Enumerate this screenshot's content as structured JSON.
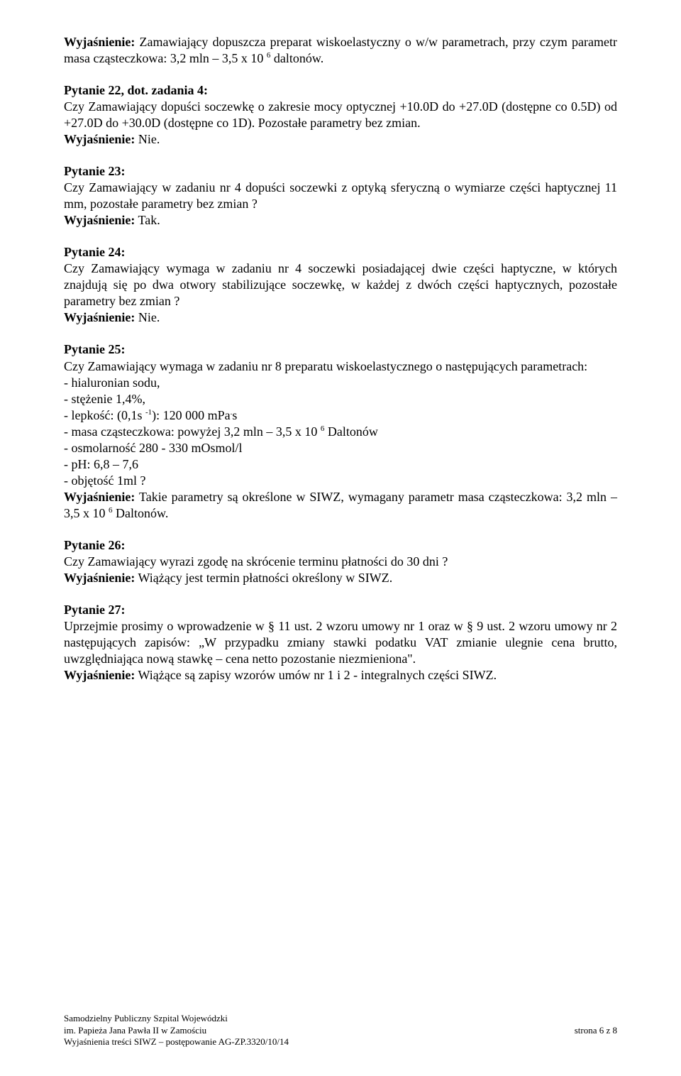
{
  "intro": {
    "text_prefix": "Wyjaśnienie:",
    "text": "Zamawiający dopuszcza preparat wiskoelastyczny o w/w parametrach, przy czym parametr masa cząsteczkowa: 3,2 mln – 3,5 x 10 ",
    "sup": "6",
    "text_after": " daltonów."
  },
  "q22": {
    "heading": "Pytanie 22, dot. zadania 4:",
    "body": "Czy Zamawiający dopuści soczewkę o zakresie mocy optycznej +10.0D do +27.0D (dostępne co 0.5D) od +27.0D do +30.0D (dostępne co 1D). Pozostałe parametry bez zmian.",
    "answer_prefix": "Wyjaśnienie:",
    "answer": "Nie."
  },
  "q23": {
    "heading": "Pytanie 23:",
    "body": "Czy Zamawiający w zadaniu nr 4 dopuści soczewki z optyką sferyczną o wymiarze części haptycznej 11 mm, pozostałe parametry bez zmian ?",
    "answer_prefix": "Wyjaśnienie:",
    "answer": "Tak."
  },
  "q24": {
    "heading": "Pytanie 24:",
    "body": "Czy Zamawiający wymaga w zadaniu nr 4 soczewki posiadającej dwie części haptyczne, w których znajdują się po dwa otwory stabilizujące soczewkę, w każdej z dwóch części haptycznych, pozostałe parametry bez zmian ?",
    "answer_prefix": "Wyjaśnienie:",
    "answer": "Nie."
  },
  "q25": {
    "heading": "Pytanie 25:",
    "body": "Czy Zamawiający wymaga w zadaniu nr 8 preparatu wiskoelastycznego o następujących parametrach:",
    "items": [
      "- hialuronian sodu,",
      "- stężenie 1,4%,"
    ],
    "item_lepkosc_before": "- lepkość: (0,1s ",
    "item_lepkosc_sup": "-1",
    "item_lepkosc_after": "): 120 000 mPa",
    "item_lepkosc_sup2": ".",
    "item_lepkosc_after2": "s",
    "item_masa_before": "- masa cząsteczkowa: powyżej 3,2 mln – 3,5 x 10 ",
    "item_masa_sup": "6",
    "item_masa_after": " Daltonów",
    "items2": [
      "- osmolarność 280 - 330 mOsmol/l",
      "- pH: 6,8 – 7,6",
      "- objętość 1ml ?"
    ],
    "answer_prefix": "Wyjaśnienie:",
    "answer_before": "Takie parametry są określone w SIWZ, wymagany parametr masa cząsteczkowa: 3,2 mln – 3,5 x 10 ",
    "answer_sup": "6",
    "answer_after": " Daltonów."
  },
  "q26": {
    "heading": "Pytanie 26:",
    "body": "Czy Zamawiający wyrazi zgodę na skrócenie terminu płatności do 30 dni ?",
    "answer_prefix": "Wyjaśnienie:",
    "answer": "Wiążący jest termin płatności określony w SIWZ."
  },
  "q27": {
    "heading": "Pytanie 27:",
    "body": "Uprzejmie prosimy o wprowadzenie w § 11 ust. 2 wzoru umowy nr 1 oraz w § 9 ust. 2 wzoru umowy nr 2 następujących zapisów: „W przypadku zmiany stawki podatku VAT zmianie ulegnie cena brutto, uwzględniająca nową stawkę – cena netto pozostanie niezmieniona\".",
    "answer_prefix": "Wyjaśnienie:",
    "answer": "Wiążące są zapisy wzorów umów nr 1 i  2 - integralnych części SIWZ."
  },
  "footer": {
    "line1": "Samodzielny Publiczny Szpital Wojewódzki",
    "line2_left": "im. Papieża Jana Pawła II w Zamościu",
    "line2_right": "strona  6  z 8",
    "line3": "Wyjaśnienia treści SIWZ – postępowanie AG-ZP.3320/10/14"
  }
}
